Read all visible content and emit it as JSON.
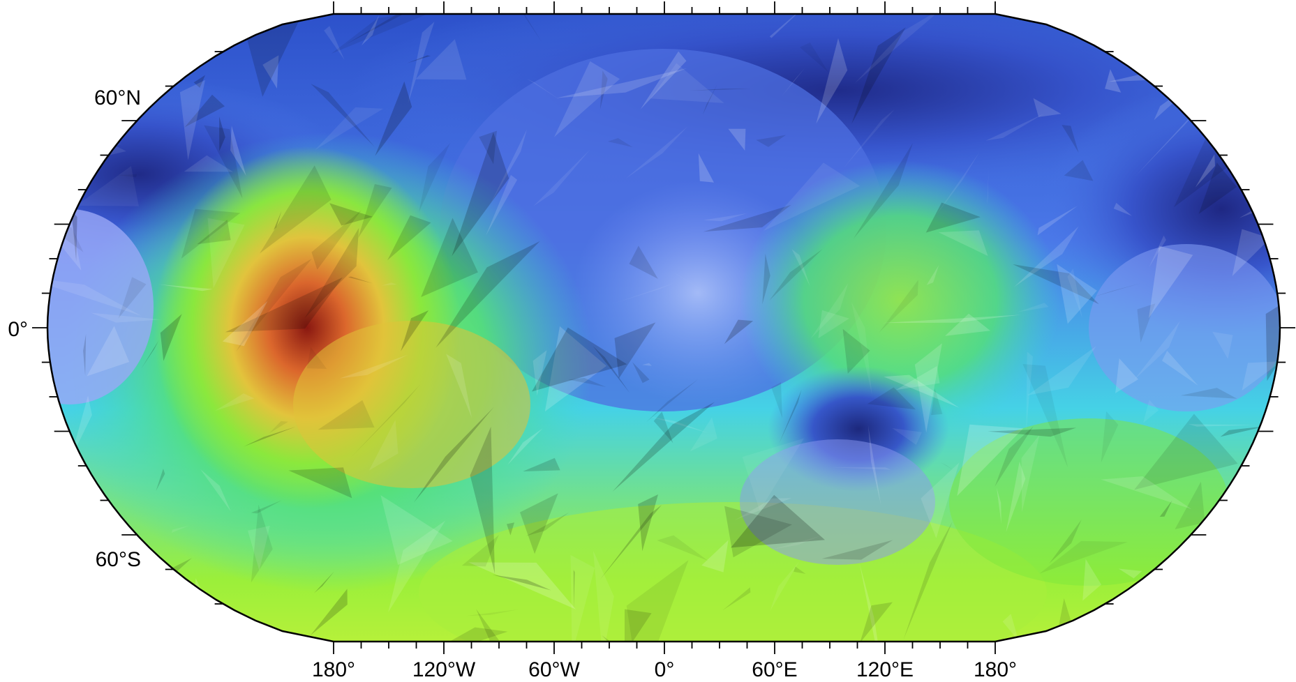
{
  "map": {
    "projection": "Winkel Tripel",
    "field": "triangulated surface (color-coded, illuminated)",
    "colormap": "rainbow",
    "frame": "plain",
    "longitude_labels": [
      "180°",
      "120°W",
      "60°W",
      "0°",
      "60°E",
      "120°E",
      "180°"
    ],
    "latitude_labels": [
      "60°N",
      "0°",
      "60°S"
    ],
    "colors": {
      "low": "#1a1f78",
      "mid_low": "#4a6fe0",
      "mid": "#2fd0e8",
      "mid_high": "#7ee83c",
      "high": "#e8d23a",
      "max": "#8a0d0d"
    }
  }
}
